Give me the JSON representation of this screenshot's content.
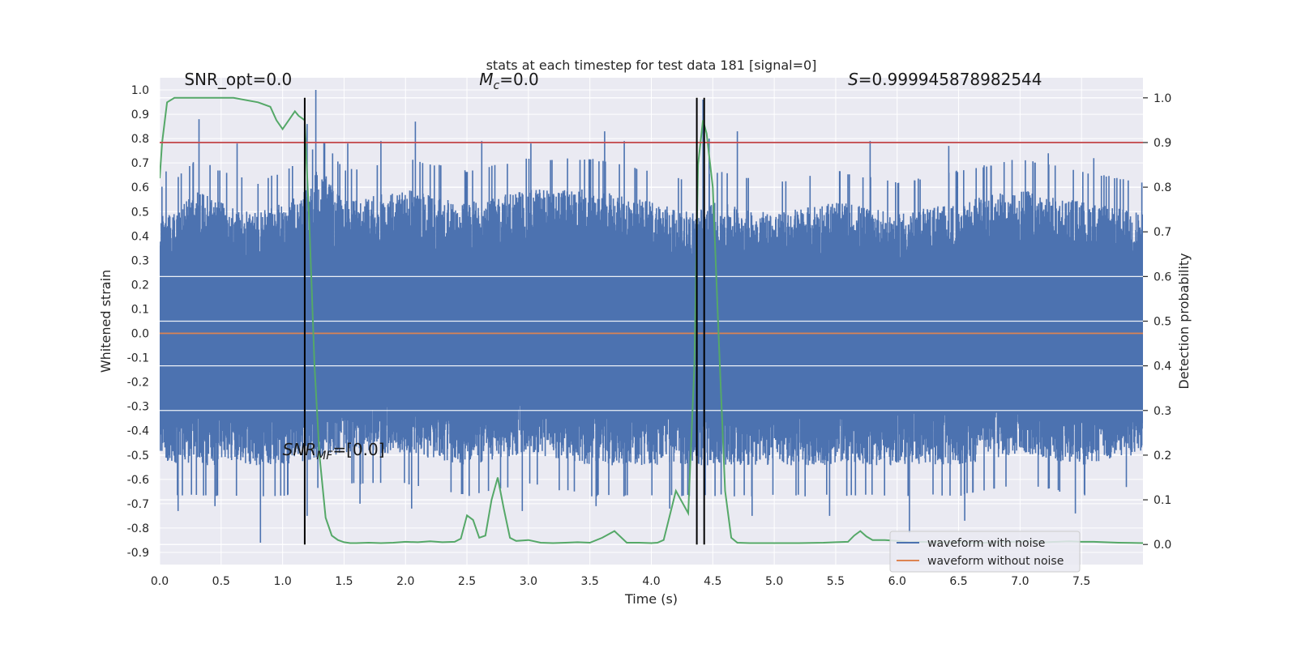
{
  "chart_data": {
    "type": "line",
    "title": "stats at each timestep for test data 181 [signal=0]",
    "xlabel": "Time (s)",
    "ylabel": "Whitened strain",
    "y2label": "Detection probability",
    "xlim": [
      0.0,
      8.0
    ],
    "ylim": [
      -0.95,
      1.05
    ],
    "y2lim": [
      -0.045,
      1.045
    ],
    "xticks": [
      "0.0",
      "0.5",
      "1.0",
      "1.5",
      "2.0",
      "2.5",
      "3.0",
      "3.5",
      "4.0",
      "4.5",
      "5.0",
      "5.5",
      "6.0",
      "6.5",
      "7.0",
      "7.5"
    ],
    "yticks": [
      "1.0",
      "0.9",
      "0.8",
      "0.7",
      "0.6",
      "0.5",
      "0.4",
      "0.3",
      "0.2",
      "0.1",
      "0.0",
      "-0.1",
      "-0.2",
      "-0.3",
      "-0.4",
      "-0.5",
      "-0.6",
      "-0.7",
      "-0.8",
      "-0.9"
    ],
    "y2ticks": [
      "1.0",
      "0.9",
      "0.8",
      "0.7",
      "0.6",
      "0.5",
      "0.4",
      "0.3",
      "0.2",
      "0.1",
      "0.0"
    ],
    "grid": true,
    "legend_position": "lower-right",
    "colors": {
      "noisy": "#4c72b0",
      "clean": "#dd8452",
      "probability": "#55a868",
      "threshold": "#c44e52",
      "marker": "#000000",
      "background": "#eaeaf2",
      "grid": "#ffffff"
    },
    "series": [
      {
        "name": "waveform with noise",
        "envelope_upper": [
          [
            0.0,
            0.45
          ],
          [
            0.05,
            0.55
          ],
          [
            0.1,
            0.5
          ],
          [
            0.3,
            0.6
          ],
          [
            0.5,
            0.55
          ],
          [
            0.8,
            0.5
          ],
          [
            1.0,
            0.55
          ],
          [
            1.2,
            0.6
          ],
          [
            1.3,
            0.7
          ],
          [
            1.5,
            0.55
          ],
          [
            2.0,
            0.6
          ],
          [
            2.5,
            0.55
          ],
          [
            3.0,
            0.6
          ],
          [
            3.5,
            0.6
          ],
          [
            4.0,
            0.55
          ],
          [
            4.35,
            0.5
          ],
          [
            4.5,
            0.55
          ],
          [
            5.0,
            0.5
          ],
          [
            5.5,
            0.55
          ],
          [
            6.0,
            0.5
          ],
          [
            6.5,
            0.55
          ],
          [
            7.0,
            0.6
          ],
          [
            7.5,
            0.55
          ],
          [
            8.0,
            0.5
          ]
        ],
        "envelope_lower": [
          [
            0.0,
            -0.5
          ],
          [
            0.1,
            -0.55
          ],
          [
            0.5,
            -0.55
          ],
          [
            1.0,
            -0.55
          ],
          [
            1.5,
            -0.5
          ],
          [
            2.0,
            -0.5
          ],
          [
            2.5,
            -0.55
          ],
          [
            3.0,
            -0.5
          ],
          [
            3.5,
            -0.55
          ],
          [
            4.0,
            -0.55
          ],
          [
            4.5,
            -0.55
          ],
          [
            5.0,
            -0.55
          ],
          [
            5.5,
            -0.55
          ],
          [
            6.0,
            -0.55
          ],
          [
            6.5,
            -0.55
          ],
          [
            7.0,
            -0.5
          ],
          [
            7.5,
            -0.55
          ],
          [
            8.0,
            -0.5
          ]
        ],
        "peaks": [
          [
            0.32,
            0.88
          ],
          [
            0.63,
            0.78
          ],
          [
            1.2,
            0.86
          ],
          [
            1.27,
            1.0
          ],
          [
            1.53,
            0.78
          ],
          [
            1.8,
            0.79
          ],
          [
            2.08,
            0.87
          ],
          [
            2.62,
            0.79
          ],
          [
            3.02,
            0.78
          ],
          [
            3.62,
            0.83
          ],
          [
            3.78,
            0.79
          ],
          [
            4.42,
            0.96
          ],
          [
            4.47,
            0.8
          ],
          [
            4.7,
            0.83
          ],
          [
            5.78,
            0.79
          ],
          [
            6.42,
            0.77
          ],
          [
            7.23,
            0.74
          ],
          [
            7.6,
            0.72
          ]
        ],
        "troughs": [
          [
            0.15,
            -0.73
          ],
          [
            0.45,
            -0.71
          ],
          [
            0.82,
            -0.86
          ],
          [
            1.2,
            -0.75
          ],
          [
            1.63,
            -0.7
          ],
          [
            2.05,
            -0.72
          ],
          [
            2.95,
            -0.73
          ],
          [
            3.55,
            -0.71
          ],
          [
            4.15,
            -0.72
          ],
          [
            4.43,
            -0.81
          ],
          [
            4.82,
            -0.75
          ],
          [
            5.45,
            -0.75
          ],
          [
            6.1,
            -0.82
          ],
          [
            6.55,
            -0.77
          ],
          [
            7.45,
            -0.74
          ]
        ]
      },
      {
        "name": "waveform without noise",
        "x": [
          0.0,
          8.0
        ],
        "y": [
          0.0,
          0.0
        ]
      },
      {
        "name": "detection probability",
        "axis": "y2",
        "x": [
          0.0,
          0.02,
          0.06,
          0.12,
          0.2,
          0.4,
          0.6,
          0.8,
          0.9,
          0.95,
          1.0,
          1.05,
          1.1,
          1.13,
          1.18,
          1.22,
          1.26,
          1.3,
          1.35,
          1.4,
          1.45,
          1.5,
          1.55,
          1.6,
          1.7,
          1.8,
          1.9,
          2.0,
          2.1,
          2.2,
          2.3,
          2.4,
          2.45,
          2.5,
          2.55,
          2.6,
          2.65,
          2.7,
          2.75,
          2.8,
          2.85,
          2.9,
          3.0,
          3.1,
          3.2,
          3.3,
          3.4,
          3.5,
          3.6,
          3.7,
          3.8,
          3.9,
          4.0,
          4.05,
          4.1,
          4.2,
          4.3,
          4.35,
          4.38,
          4.42,
          4.45,
          4.5,
          4.55,
          4.6,
          4.65,
          4.7,
          4.8,
          5.0,
          5.2,
          5.4,
          5.5,
          5.6,
          5.65,
          5.7,
          5.75,
          5.8,
          5.9,
          6.0,
          6.1,
          6.2,
          6.3,
          6.4,
          6.5,
          6.6,
          6.7,
          6.8,
          6.9,
          7.0,
          7.1,
          7.2,
          7.3,
          7.4,
          7.5,
          7.6,
          7.8,
          8.0
        ],
        "y": [
          0.82,
          0.9,
          0.99,
          1.0,
          1.0,
          1.0,
          1.0,
          0.99,
          0.98,
          0.95,
          0.93,
          0.95,
          0.97,
          0.96,
          0.95,
          0.7,
          0.4,
          0.2,
          0.06,
          0.02,
          0.01,
          0.005,
          0.003,
          0.003,
          0.004,
          0.003,
          0.004,
          0.006,
          0.005,
          0.007,
          0.005,
          0.006,
          0.013,
          0.065,
          0.055,
          0.015,
          0.02,
          0.1,
          0.15,
          0.08,
          0.015,
          0.008,
          0.01,
          0.004,
          0.003,
          0.004,
          0.005,
          0.004,
          0.015,
          0.03,
          0.004,
          0.004,
          0.003,
          0.004,
          0.01,
          0.12,
          0.07,
          0.4,
          0.85,
          0.95,
          0.92,
          0.8,
          0.45,
          0.12,
          0.015,
          0.004,
          0.003,
          0.003,
          0.003,
          0.004,
          0.005,
          0.006,
          0.02,
          0.03,
          0.018,
          0.01,
          0.01,
          0.008,
          0.005,
          0.006,
          0.005,
          0.005,
          0.006,
          0.004,
          0.004,
          0.005,
          0.006,
          0.006,
          0.007,
          0.005,
          0.006,
          0.007,
          0.006,
          0.006,
          0.004,
          0.003
        ]
      }
    ],
    "threshold": {
      "axis": "y2",
      "value": 0.9
    },
    "vlines": [
      1.18,
      4.37,
      4.43
    ],
    "annotations": [
      {
        "text": "SNR_opt=0.0",
        "x": 0.2,
        "y": 1.02
      },
      {
        "text_parts": [
          [
            "M",
            "i"
          ],
          [
            "c",
            "is"
          ],
          [
            "=0.0",
            ""
          ]
        ],
        "x": 2.6,
        "y": 1.02
      },
      {
        "text_parts": [
          [
            "S",
            "i"
          ],
          [
            "=0.999945878982544",
            ""
          ]
        ],
        "x": 5.6,
        "y": 1.02
      },
      {
        "text_parts": [
          [
            "SNR",
            "i"
          ],
          [
            "MF",
            "is"
          ],
          [
            "=[0.0]",
            ""
          ]
        ],
        "x": 1.0,
        "y": -0.5
      }
    ]
  }
}
